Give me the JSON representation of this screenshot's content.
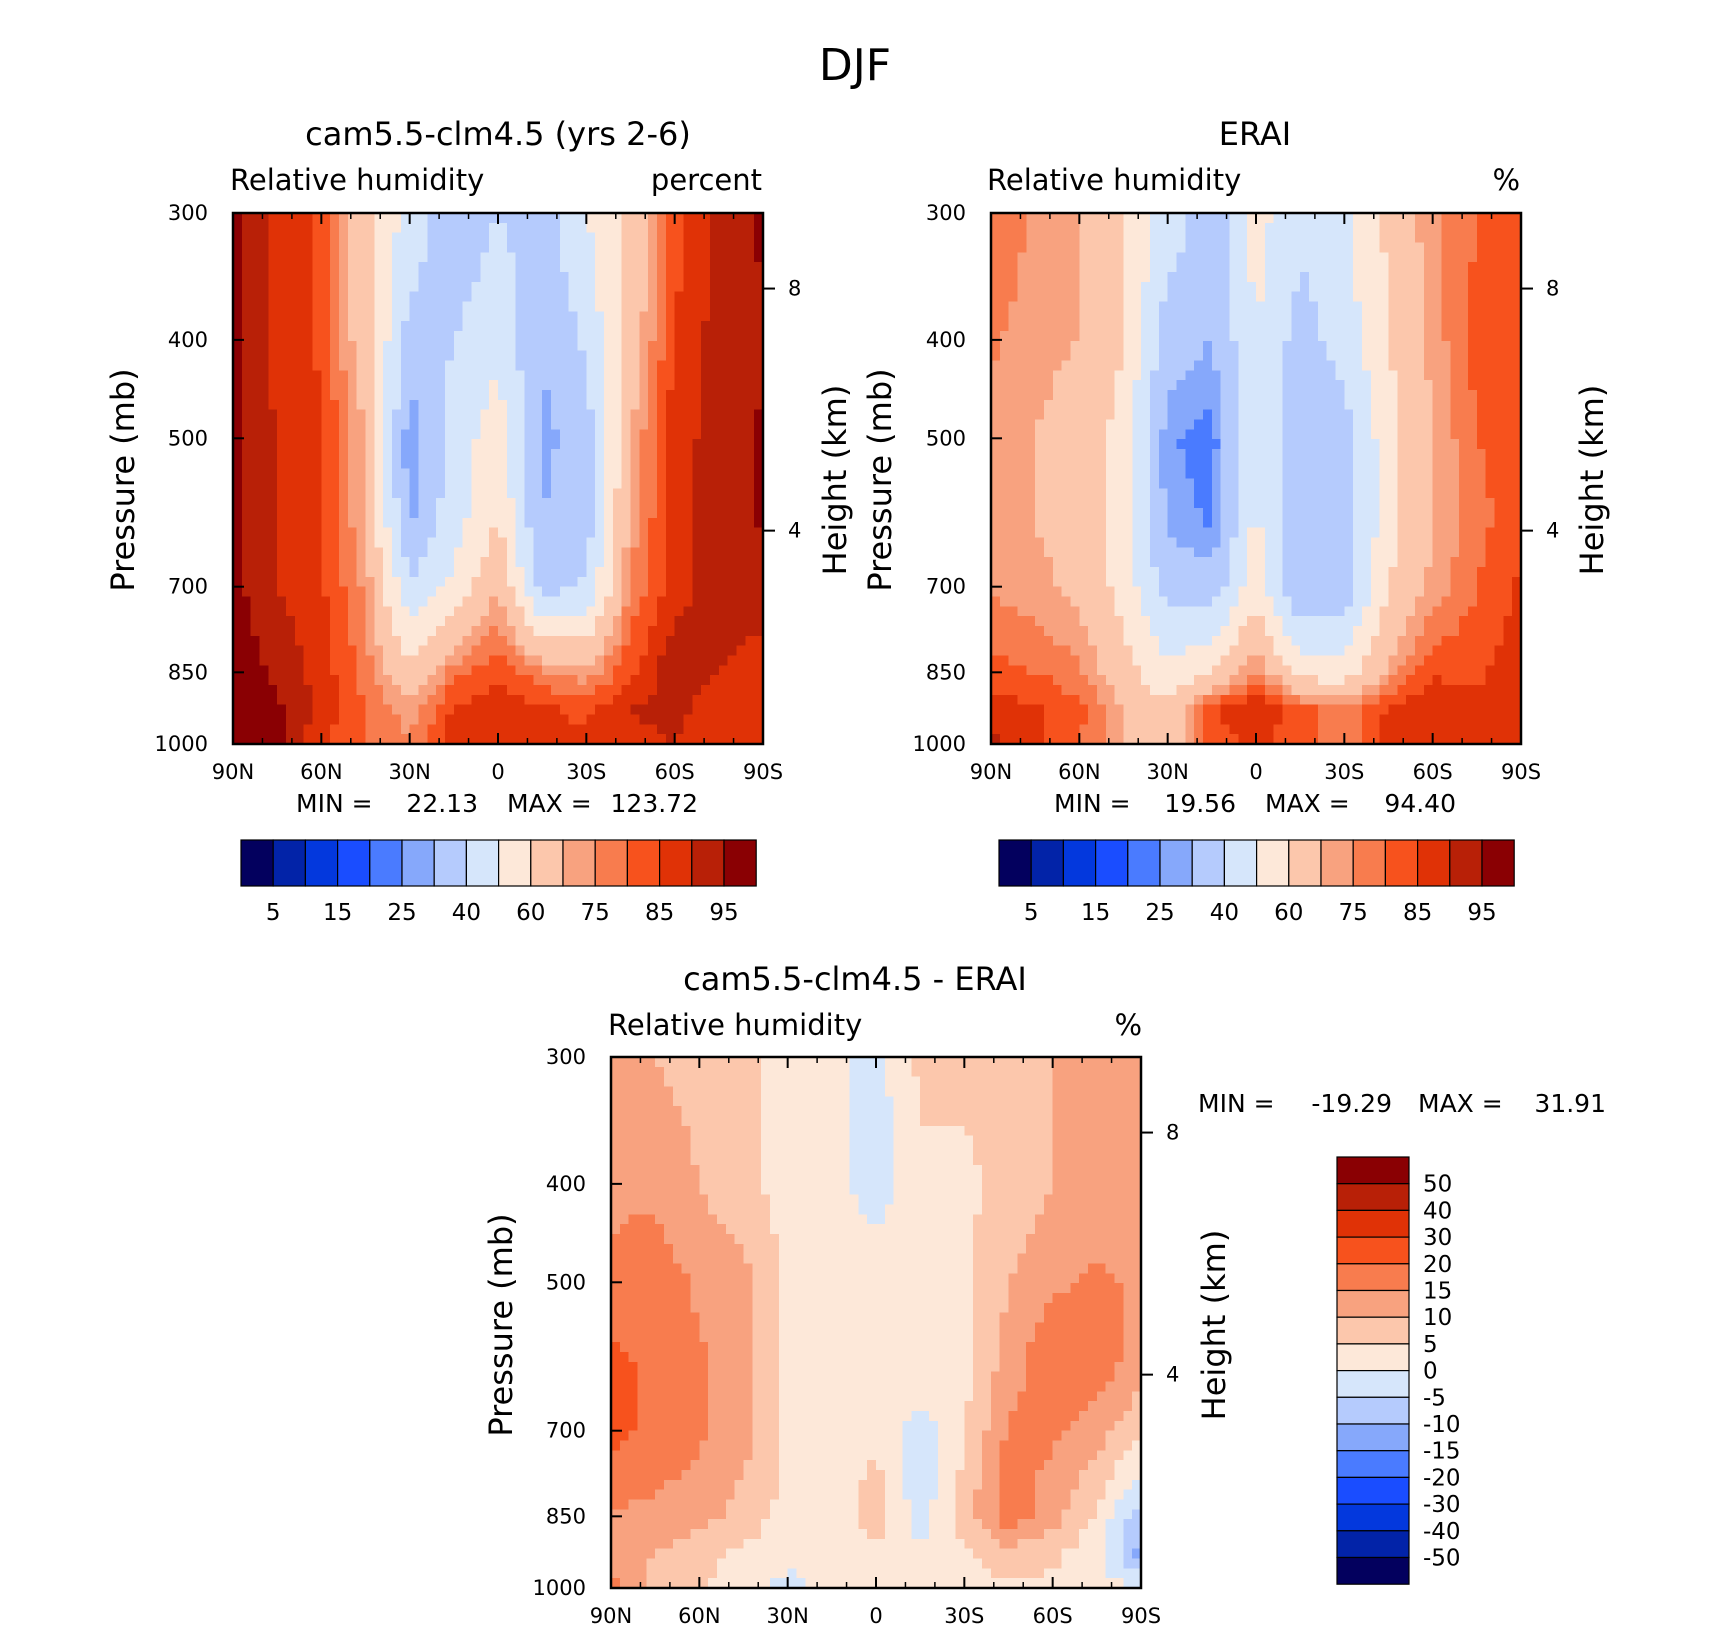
{
  "figure": {
    "title": "DJF"
  },
  "colors": {
    "rh_levels": [
      "#03005e",
      "#0223a8",
      "#0338dd",
      "#1a4dff",
      "#4a7bff",
      "#86a8fb",
      "#b5cbfd",
      "#d6e6fb",
      "#fde8d9",
      "#fcc7ac",
      "#f8a27f",
      "#f87c4e",
      "#f7521d",
      "#e03206",
      "#b82007",
      "#8a0003"
    ],
    "diff_levels": [
      "#03005e",
      "#0223a8",
      "#0338dd",
      "#1a4dff",
      "#4a7bff",
      "#86a8fb",
      "#b5cbfd",
      "#d6e6fb",
      "#fde8d9",
      "#fcc7ac",
      "#f8a27f",
      "#f87c4e",
      "#f7521d",
      "#e03206",
      "#b82007",
      "#8a0003"
    ]
  },
  "panels": [
    {
      "id": "model",
      "title": "cam5.5-clm4.5 (yrs 2-6)",
      "left_label": "Relative humidity",
      "right_label": "percent",
      "ylabel": "Pressure (mb)",
      "y2label": "Height (km)",
      "yticks": [
        "300",
        "400",
        "500",
        "700",
        "850",
        "1000"
      ],
      "y2ticks": [
        "8",
        "4"
      ],
      "xticks": [
        "90N",
        "60N",
        "30N",
        "0",
        "30S",
        "60S",
        "90S"
      ],
      "min_label": "MIN =",
      "min_value": "22.13",
      "max_label": "MAX =",
      "max_value": "123.72"
    },
    {
      "id": "obs",
      "title": "ERAI",
      "left_label": "Relative humidity",
      "right_label": "%",
      "ylabel": "Pressure (mb)",
      "y2label": "Height (km)",
      "yticks": [
        "300",
        "400",
        "500",
        "700",
        "850",
        "1000"
      ],
      "y2ticks": [
        "8",
        "4"
      ],
      "xticks": [
        "90N",
        "60N",
        "30N",
        "0",
        "30S",
        "60S",
        "90S"
      ],
      "min_label": "MIN =",
      "min_value": "19.56",
      "max_label": "MAX =",
      "max_value": "94.40"
    },
    {
      "id": "diff",
      "title": "cam5.5-clm4.5 - ERAI",
      "left_label": "Relative humidity",
      "right_label": "%",
      "ylabel": "Pressure (mb)",
      "y2label": "Height (km)",
      "yticks": [
        "300",
        "400",
        "500",
        "700",
        "850",
        "1000"
      ],
      "y2ticks": [
        "8",
        "4"
      ],
      "xticks": [
        "90N",
        "60N",
        "30N",
        "0",
        "30S",
        "60S",
        "90S"
      ],
      "min_label": "MIN =",
      "min_value": "-19.29",
      "max_label": "MAX =",
      "max_value": "31.91"
    }
  ],
  "colorbars": {
    "rh_labels": [
      "5",
      "15",
      "25",
      "40",
      "60",
      "75",
      "85",
      "95"
    ],
    "diff_labels": [
      "50",
      "40",
      "30",
      "20",
      "15",
      "10",
      "5",
      "0",
      "-5",
      "-10",
      "-15",
      "-20",
      "-30",
      "-40",
      "-50"
    ]
  },
  "chart_data": [
    {
      "type": "heatmap",
      "title": "cam5.5-clm4.5 (yrs 2-6)",
      "variable": "Relative humidity",
      "units": "percent",
      "ylabel": "Pressure (mb)",
      "y2label": "Height (km)",
      "x": [
        "90N",
        "60N",
        "30N",
        "0",
        "30S",
        "60S",
        "90S"
      ],
      "x_lat": [
        90,
        60,
        30,
        0,
        -30,
        -60,
        -90
      ],
      "y_pressure": [
        300,
        400,
        500,
        700,
        850,
        1000
      ],
      "y2_height_km": [
        8,
        4
      ],
      "levels": [
        5,
        10,
        15,
        20,
        25,
        30,
        40,
        50,
        60,
        70,
        75,
        80,
        85,
        90,
        95
      ],
      "grid_lat": [
        90,
        75,
        60,
        45,
        30,
        15,
        0,
        -15,
        -30,
        -45,
        -60,
        -75,
        -90
      ],
      "grid_pressure": [
        300,
        400,
        500,
        600,
        700,
        850,
        925,
        1000
      ],
      "values": [
        [
          96,
          88,
          84,
          62,
          46,
          32,
          40,
          36,
          50,
          62,
          82,
          92,
          96
        ],
        [
          96,
          88,
          84,
          64,
          36,
          40,
          48,
          30,
          42,
          64,
          86,
          92,
          94
        ],
        [
          96,
          90,
          86,
          70,
          24,
          44,
          56,
          28,
          34,
          70,
          88,
          92,
          96
        ],
        [
          97,
          90,
          86,
          70,
          28,
          46,
          60,
          30,
          34,
          72,
          88,
          92,
          96
        ],
        [
          97,
          90,
          86,
          74,
          42,
          52,
          70,
          36,
          42,
          76,
          88,
          92,
          92
        ],
        [
          98,
          94,
          88,
          78,
          62,
          78,
          84,
          76,
          72,
          84,
          94,
          90,
          88
        ],
        [
          98,
          96,
          88,
          80,
          72,
          86,
          88,
          86,
          84,
          90,
          92,
          86,
          86
        ],
        [
          98,
          96,
          86,
          80,
          76,
          88,
          88,
          86,
          86,
          88,
          90,
          86,
          86
        ]
      ],
      "min": 22.13,
      "max": 123.72
    },
    {
      "type": "heatmap",
      "title": "ERAI",
      "variable": "Relative humidity",
      "units": "%",
      "ylabel": "Pressure (mb)",
      "y2label": "Height (km)",
      "x": [
        "90N",
        "60N",
        "30N",
        "0",
        "30S",
        "60S",
        "90S"
      ],
      "x_lat": [
        90,
        60,
        30,
        0,
        -30,
        -60,
        -90
      ],
      "y_pressure": [
        300,
        400,
        500,
        700,
        850,
        1000
      ],
      "y2_height_km": [
        8,
        4
      ],
      "levels": [
        5,
        10,
        15,
        20,
        25,
        30,
        40,
        50,
        60,
        70,
        75,
        80,
        85,
        90,
        95
      ],
      "grid_lat": [
        90,
        75,
        60,
        45,
        30,
        15,
        0,
        -15,
        -30,
        -45,
        -60,
        -75,
        -90
      ],
      "grid_pressure": [
        300,
        400,
        500,
        600,
        700,
        850,
        925,
        1000
      ],
      "values": [
        [
          80,
          74,
          70,
          60,
          46,
          34,
          54,
          42,
          48,
          62,
          74,
          80,
          84
        ],
        [
          76,
          72,
          70,
          60,
          34,
          30,
          50,
          36,
          44,
          60,
          72,
          82,
          82
        ],
        [
          72,
          70,
          66,
          56,
          26,
          22,
          50,
          30,
          36,
          56,
          70,
          80,
          82
        ],
        [
          72,
          70,
          66,
          54,
          28,
          24,
          52,
          30,
          34,
          56,
          70,
          78,
          84
        ],
        [
          74,
          72,
          68,
          56,
          36,
          34,
          56,
          30,
          34,
          60,
          72,
          80,
          86
        ],
        [
          82,
          80,
          76,
          64,
          52,
          60,
          76,
          56,
          54,
          72,
          84,
          84,
          88
        ],
        [
          88,
          86,
          82,
          70,
          62,
          84,
          90,
          82,
          76,
          86,
          90,
          86,
          90
        ],
        [
          92,
          86,
          80,
          70,
          64,
          82,
          86,
          82,
          76,
          86,
          88,
          86,
          90
        ]
      ],
      "min": 19.56,
      "max": 94.4
    },
    {
      "type": "heatmap",
      "title": "cam5.5-clm4.5 - ERAI",
      "variable": "Relative humidity",
      "units": "%",
      "ylabel": "Pressure (mb)",
      "y2label": "Height (km)",
      "x": [
        "90N",
        "60N",
        "30N",
        "0",
        "30S",
        "60S",
        "90S"
      ],
      "x_lat": [
        90,
        60,
        30,
        0,
        -30,
        -60,
        -90
      ],
      "y_pressure": [
        300,
        400,
        500,
        700,
        850,
        1000
      ],
      "y2_height_km": [
        8,
        4
      ],
      "levels": [
        -50,
        -40,
        -30,
        -20,
        -15,
        -10,
        -5,
        0,
        5,
        10,
        15,
        20,
        30,
        40,
        50
      ],
      "grid_lat": [
        90,
        75,
        60,
        45,
        30,
        15,
        0,
        -15,
        -30,
        -45,
        -60,
        -75,
        -90
      ],
      "grid_pressure": [
        300,
        400,
        500,
        600,
        700,
        850,
        925,
        1000
      ],
      "values": [
        [
          12,
          10,
          8,
          6,
          3,
          2,
          -2,
          6,
          6,
          8,
          10,
          12,
          10
        ],
        [
          14,
          14,
          10,
          6,
          3,
          2,
          -3,
          4,
          4,
          6,
          10,
          12,
          10
        ],
        [
          16,
          18,
          14,
          12,
          4,
          2,
          4,
          4,
          4,
          10,
          14,
          16,
          14
        ],
        [
          22,
          18,
          16,
          12,
          4,
          2,
          4,
          4,
          4,
          12,
          20,
          18,
          12
        ],
        [
          22,
          18,
          16,
          12,
          4,
          2,
          4,
          -3,
          4,
          16,
          16,
          12,
          6
        ],
        [
          14,
          14,
          12,
          8,
          3,
          2,
          8,
          -3,
          8,
          18,
          12,
          4,
          -8
        ],
        [
          12,
          10,
          6,
          4,
          2,
          2,
          4,
          2,
          4,
          8,
          6,
          2,
          -12
        ],
        [
          18,
          8,
          6,
          2,
          -2,
          2,
          4,
          2,
          4,
          4,
          4,
          2,
          0
        ]
      ],
      "min": -19.29,
      "max": 31.91
    }
  ]
}
